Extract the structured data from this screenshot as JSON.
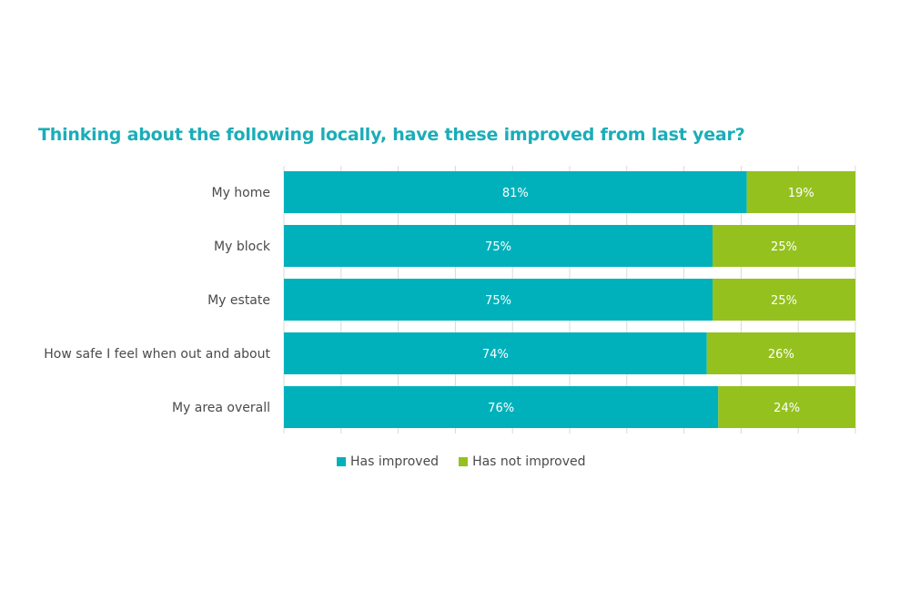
{
  "chart_data": {
    "type": "bar",
    "orientation": "horizontal",
    "stacked": true,
    "title": "Thinking about the following locally, have these improved from last year?",
    "xlabel": "",
    "ylabel": "",
    "xlim": [
      0,
      100
    ],
    "grid": true,
    "grid_step": 10,
    "legend_position": "bottom",
    "categories": [
      "My home",
      "My block",
      "My estate",
      "How safe I feel when out and about",
      "My area overall"
    ],
    "series": [
      {
        "name": "Has improved",
        "color": "#00B1BB",
        "values": [
          81,
          75,
          75,
          74,
          76
        ],
        "labels": [
          "81%",
          "75%",
          "75%",
          "74%",
          "76%"
        ]
      },
      {
        "name": "Has not improved",
        "color": "#95C11F",
        "values": [
          19,
          25,
          25,
          26,
          24
        ],
        "labels": [
          "19%",
          "25%",
          "25%",
          "26%",
          "24%"
        ]
      }
    ]
  }
}
